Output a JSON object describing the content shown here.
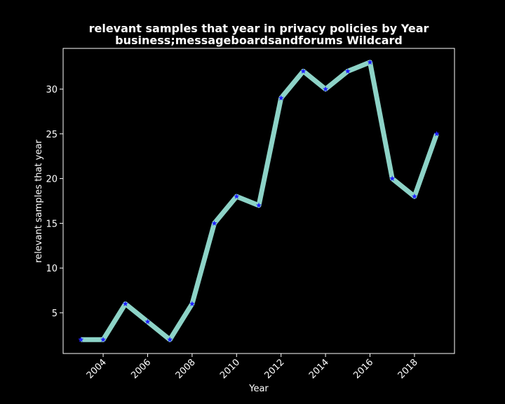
{
  "chart_data": {
    "type": "line",
    "title_line1": "relevant samples that year in privacy policies by Year",
    "title_line2": "business;messageboardsandforums Wildcard",
    "xlabel": "Year",
    "ylabel": "relevant samples that year",
    "x": [
      2003,
      2004,
      2005,
      2006,
      2007,
      2008,
      2009,
      2010,
      2011,
      2012,
      2013,
      2014,
      2015,
      2016,
      2017,
      2018,
      2019
    ],
    "series": [
      {
        "values": [
          2,
          2,
          6,
          4,
          2,
          6,
          15,
          18,
          17,
          29,
          32,
          30,
          32,
          33,
          20,
          18,
          25
        ]
      }
    ],
    "xlim": [
      2002.2,
      2019.8
    ],
    "ylim": [
      0.45,
      34.55
    ],
    "xticks": [
      "2004",
      "2006",
      "2008",
      "2010",
      "2012",
      "2014",
      "2016",
      "2018"
    ],
    "yticks": [
      "5",
      "10",
      "15",
      "20",
      "25",
      "30"
    ],
    "grid": false,
    "colors": {
      "background": "#000000",
      "axes": "#ffffff",
      "line": "#8dd3c7",
      "marker": "#1f1fff"
    }
  }
}
